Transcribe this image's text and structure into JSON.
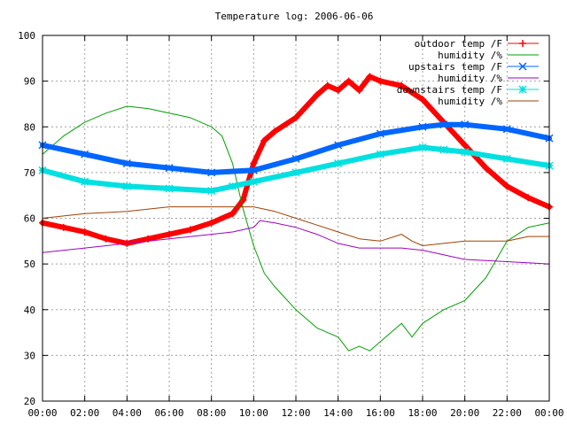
{
  "chart_data": {
    "type": "line",
    "title": "Temperature log: 2006-06-06",
    "xlabel": "",
    "ylabel": "",
    "xlim": [
      0,
      24
    ],
    "ylim": [
      20,
      100
    ],
    "grid": true,
    "legend_position": "top-right",
    "x_ticks": [
      {
        "value": 0,
        "label": "00:00"
      },
      {
        "value": 2,
        "label": "02:00"
      },
      {
        "value": 4,
        "label": "04:00"
      },
      {
        "value": 6,
        "label": "06:00"
      },
      {
        "value": 8,
        "label": "08:00"
      },
      {
        "value": 10,
        "label": "10:00"
      },
      {
        "value": 12,
        "label": "12:00"
      },
      {
        "value": 14,
        "label": "14:00"
      },
      {
        "value": 16,
        "label": "16:00"
      },
      {
        "value": 18,
        "label": "18:00"
      },
      {
        "value": 20,
        "label": "20:00"
      },
      {
        "value": 22,
        "label": "22:00"
      },
      {
        "value": 24,
        "label": "00:00"
      }
    ],
    "y_ticks": [
      {
        "value": 20,
        "label": "20"
      },
      {
        "value": 30,
        "label": "30"
      },
      {
        "value": 40,
        "label": "40"
      },
      {
        "value": 50,
        "label": "50"
      },
      {
        "value": 60,
        "label": "60"
      },
      {
        "value": 70,
        "label": "70"
      },
      {
        "value": 80,
        "label": "80"
      },
      {
        "value": 90,
        "label": "90"
      },
      {
        "value": 100,
        "label": "100"
      }
    ],
    "series": [
      {
        "name": "outdoor temp /F",
        "color": "#ff0000",
        "marker": "plus",
        "thick": true,
        "points": [
          [
            0,
            59
          ],
          [
            1,
            58
          ],
          [
            2,
            57
          ],
          [
            3,
            55.5
          ],
          [
            4,
            54.5
          ],
          [
            5,
            55.5
          ],
          [
            6,
            56.5
          ],
          [
            7,
            57.5
          ],
          [
            8,
            59
          ],
          [
            9,
            61
          ],
          [
            9.5,
            64
          ],
          [
            10,
            72
          ],
          [
            10.5,
            77
          ],
          [
            11,
            79
          ],
          [
            12,
            82
          ],
          [
            13,
            87
          ],
          [
            13.5,
            89
          ],
          [
            14,
            88
          ],
          [
            14.5,
            90
          ],
          [
            15,
            88
          ],
          [
            15.5,
            91
          ],
          [
            16,
            90
          ],
          [
            17,
            89
          ],
          [
            18,
            86
          ],
          [
            19,
            81
          ],
          [
            20,
            76
          ],
          [
            21,
            71
          ],
          [
            22,
            67
          ],
          [
            23,
            64.5
          ],
          [
            24,
            62.5
          ]
        ]
      },
      {
        "name": "humidity /%",
        "color": "#00a000",
        "marker": "none",
        "thick": false,
        "points": [
          [
            0,
            74
          ],
          [
            1,
            78
          ],
          [
            2,
            81
          ],
          [
            3,
            83
          ],
          [
            4,
            84.5
          ],
          [
            5,
            84
          ],
          [
            6,
            83
          ],
          [
            7,
            82
          ],
          [
            8,
            80
          ],
          [
            8.5,
            78
          ],
          [
            9,
            72
          ],
          [
            9.5,
            62
          ],
          [
            10,
            54
          ],
          [
            10.5,
            48
          ],
          [
            11,
            45
          ],
          [
            12,
            40
          ],
          [
            13,
            36
          ],
          [
            14,
            34
          ],
          [
            14.5,
            31
          ],
          [
            15,
            32
          ],
          [
            15.5,
            31
          ],
          [
            16,
            33
          ],
          [
            17,
            37
          ],
          [
            17.5,
            34
          ],
          [
            18,
            37
          ],
          [
            19,
            40
          ],
          [
            20,
            42
          ],
          [
            21,
            47
          ],
          [
            22,
            55
          ],
          [
            23,
            58
          ],
          [
            24,
            59
          ]
        ]
      },
      {
        "name": "upstairs temp /F",
        "color": "#0066ff",
        "marker": "cross",
        "thick": true,
        "points": [
          [
            0,
            76
          ],
          [
            2,
            74
          ],
          [
            4,
            72
          ],
          [
            6,
            71
          ],
          [
            8,
            70
          ],
          [
            10,
            70.5
          ],
          [
            12,
            73
          ],
          [
            14,
            76
          ],
          [
            16,
            78.5
          ],
          [
            18,
            80
          ],
          [
            19,
            80.5
          ],
          [
            20,
            80.5
          ],
          [
            22,
            79.5
          ],
          [
            24,
            77.5
          ]
        ]
      },
      {
        "name": "humidity /%",
        "color": "#a000c0",
        "marker": "none",
        "thick": false,
        "points": [
          [
            0,
            52.5
          ],
          [
            2,
            53.5
          ],
          [
            4,
            54.5
          ],
          [
            6,
            55.5
          ],
          [
            8,
            56.5
          ],
          [
            9,
            57
          ],
          [
            10,
            58
          ],
          [
            10.3,
            59.5
          ],
          [
            11,
            59
          ],
          [
            12,
            58
          ],
          [
            13,
            56.5
          ],
          [
            14,
            54.5
          ],
          [
            15,
            53.5
          ],
          [
            16,
            53.5
          ],
          [
            17,
            53.5
          ],
          [
            18,
            53
          ],
          [
            19,
            52
          ],
          [
            20,
            51
          ],
          [
            22,
            50.5
          ],
          [
            24,
            50
          ]
        ]
      },
      {
        "name": "downstairs temp /F",
        "color": "#00e0e0",
        "marker": "star",
        "thick": true,
        "points": [
          [
            0,
            70.5
          ],
          [
            2,
            68
          ],
          [
            4,
            67
          ],
          [
            6,
            66.5
          ],
          [
            8,
            66
          ],
          [
            9,
            67
          ],
          [
            10,
            68
          ],
          [
            12,
            70
          ],
          [
            14,
            72
          ],
          [
            16,
            74
          ],
          [
            18,
            75.5
          ],
          [
            19,
            75
          ],
          [
            20,
            74.5
          ],
          [
            22,
            73
          ],
          [
            24,
            71.5
          ]
        ]
      },
      {
        "name": "humidity /%",
        "color": "#a04000",
        "marker": "none",
        "thick": false,
        "points": [
          [
            0,
            60
          ],
          [
            2,
            61
          ],
          [
            4,
            61.5
          ],
          [
            6,
            62.5
          ],
          [
            8,
            62.5
          ],
          [
            9,
            62.5
          ],
          [
            10,
            62.5
          ],
          [
            11,
            61.5
          ],
          [
            12,
            60
          ],
          [
            13,
            58.5
          ],
          [
            14,
            57
          ],
          [
            15,
            55.5
          ],
          [
            16,
            55
          ],
          [
            17,
            56.5
          ],
          [
            17.5,
            55
          ],
          [
            18,
            54
          ],
          [
            19,
            54.5
          ],
          [
            20,
            55
          ],
          [
            21,
            55
          ],
          [
            22,
            55
          ],
          [
            23,
            56
          ],
          [
            24,
            56
          ]
        ]
      }
    ]
  }
}
